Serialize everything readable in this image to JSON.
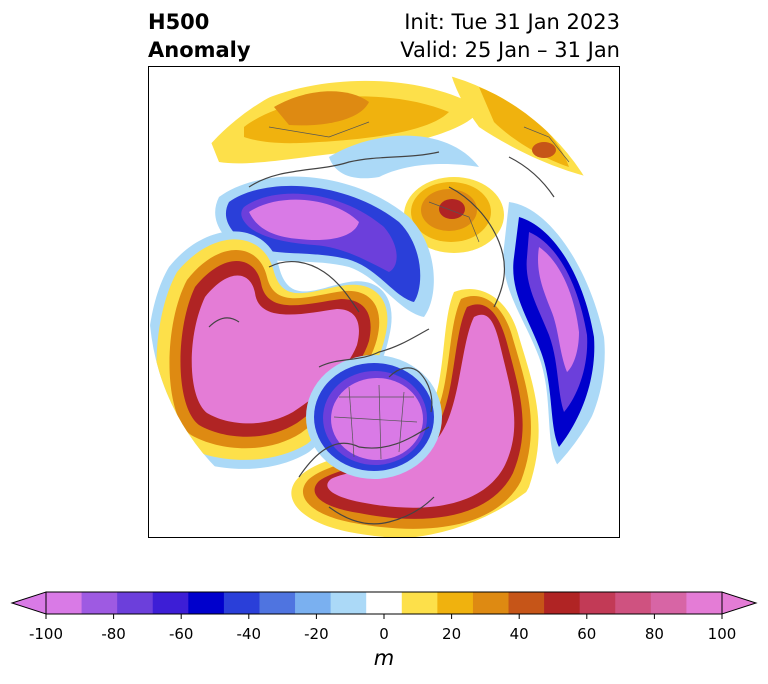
{
  "header": {
    "left_line1": "H500",
    "left_line2": "Anomaly",
    "right_line1": "Init: Tue 31 Jan 2023",
    "right_line2": "Valid: 25 Jan – 31 Jan"
  },
  "map": {
    "projection": "north-polar-stereographic",
    "features": [
      "coastlines",
      "country-borders",
      "state-borders"
    ]
  },
  "colorbar": {
    "unit": "m",
    "ticks": [
      "-100",
      "-80",
      "-60",
      "-40",
      "-20",
      "0",
      "20",
      "40",
      "60",
      "80",
      "100"
    ],
    "levels": [
      -100,
      -90,
      -80,
      -70,
      -60,
      -50,
      -40,
      -30,
      -20,
      -10,
      10,
      20,
      30,
      40,
      50,
      60,
      70,
      80,
      90,
      100
    ],
    "colors": [
      "#d97ae6",
      "#9e5ae2",
      "#6c3fdb",
      "#3d1ed6",
      "#0000cc",
      "#2a3fd9",
      "#4f74e0",
      "#7ab0f0",
      "#abd9f7",
      "#ffffff",
      "#fde04a",
      "#f0b20e",
      "#de8a12",
      "#c65518",
      "#b02424",
      "#c23a56",
      "#cf5280",
      "#d765a5",
      "#e47cd6"
    ],
    "extend": "both"
  }
}
